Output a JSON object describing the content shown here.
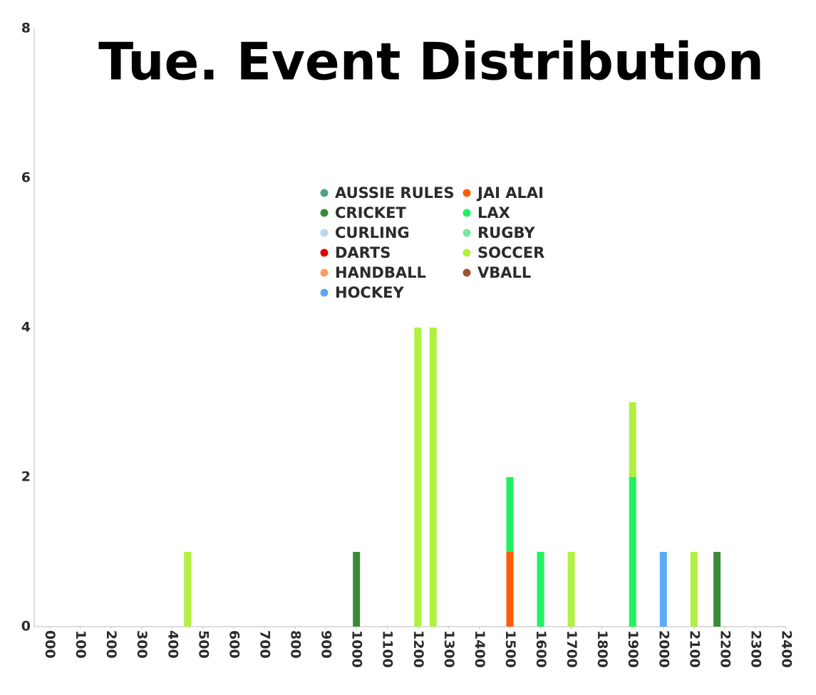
{
  "chart_data": {
    "type": "bar",
    "stacked": true,
    "title": "Tue. Event Distribution",
    "x": [
      450,
      1000,
      1200,
      1250,
      1500,
      1600,
      1700,
      1900,
      2000,
      2100,
      2175
    ],
    "series": [
      {
        "name": "AUSSIE RULES",
        "color": "#4aa37f",
        "values": [
          null,
          null,
          null,
          null,
          null,
          null,
          null,
          null,
          null,
          null,
          null
        ]
      },
      {
        "name": "CRICKET",
        "color": "#3a8a3a",
        "values": [
          null,
          1,
          null,
          null,
          null,
          null,
          null,
          null,
          null,
          null,
          1
        ]
      },
      {
        "name": "CURLING",
        "color": "#bcd8f0",
        "values": [
          null,
          null,
          null,
          null,
          null,
          null,
          null,
          null,
          null,
          null,
          null
        ]
      },
      {
        "name": "DARTS",
        "color": "#e00000",
        "values": [
          null,
          null,
          null,
          null,
          null,
          null,
          null,
          null,
          null,
          null,
          null
        ]
      },
      {
        "name": "HANDBALL",
        "color": "#f5a060",
        "values": [
          null,
          null,
          null,
          null,
          null,
          null,
          null,
          null,
          null,
          null,
          null
        ]
      },
      {
        "name": "HOCKEY",
        "color": "#5aaaf8",
        "values": [
          null,
          null,
          null,
          null,
          null,
          null,
          null,
          null,
          1,
          null,
          null
        ]
      },
      {
        "name": "JAI ALAI",
        "color": "#ff5c0a",
        "values": [
          null,
          null,
          null,
          null,
          1,
          null,
          null,
          null,
          null,
          null,
          null
        ]
      },
      {
        "name": "LAX",
        "color": "#22f060",
        "values": [
          null,
          null,
          null,
          null,
          1,
          1,
          null,
          2,
          null,
          null,
          null
        ]
      },
      {
        "name": "RUGBY",
        "color": "#78e8a0",
        "values": [
          null,
          null,
          null,
          null,
          null,
          null,
          null,
          null,
          null,
          null,
          null
        ]
      },
      {
        "name": "SOCCER",
        "color": "#b0f040",
        "values": [
          1,
          null,
          4,
          4,
          null,
          null,
          1,
          1,
          null,
          1,
          null
        ]
      },
      {
        "name": "VBALL",
        "color": "#a0522d",
        "values": [
          null,
          null,
          null,
          null,
          null,
          null,
          null,
          null,
          null,
          null,
          null
        ]
      }
    ],
    "xlim": [
      -50,
      2400
    ],
    "xticks": [
      {
        "value": 0,
        "label": "000"
      },
      100,
      200,
      300,
      400,
      500,
      600,
      700,
      800,
      900,
      1000,
      1100,
      1200,
      1300,
      1400,
      1500,
      1600,
      1700,
      1800,
      1900,
      2000,
      2100,
      2200,
      2300,
      2400
    ],
    "ylim": [
      0,
      8
    ],
    "yticks": [
      0,
      2,
      4,
      6,
      8
    ],
    "grid": false
  }
}
